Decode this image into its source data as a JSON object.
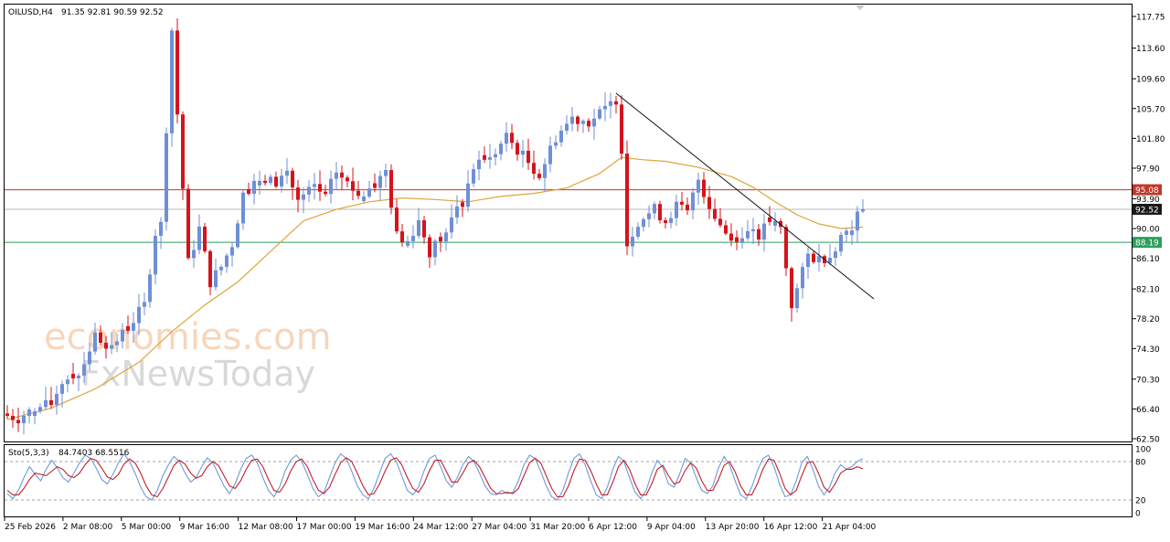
{
  "header": {
    "symbol": "OILUSD,H4",
    "ohlc": "91.35 92.81 90.59 92.52"
  },
  "watermark": {
    "line1": "economies.com",
    "line2": "FxNewsToday"
  },
  "colors": {
    "bull": "#6f8fd6",
    "bear": "#d4141c",
    "ma": "#e0a43a",
    "resistance": "#c0392b",
    "support": "#2e9e5b",
    "current": "#1a1a1a",
    "trendline": "#111111",
    "stoch_k": "#6f9ad8",
    "stoch_d": "#c2212a"
  },
  "chart_data": [
    {
      "type": "candlestick",
      "timeframe": "H4",
      "symbol": "OILUSD",
      "ylim": [
        62.5,
        117.75
      ],
      "y_ticks": [
        "117.75",
        "113.60",
        "109.60",
        "105.70",
        "101.80",
        "97.90",
        "93.90",
        "90.00",
        "86.10",
        "82.10",
        "78.20",
        "74.30",
        "70.30",
        "66.40",
        "62.50"
      ],
      "x_tick_labels": [
        "25 Feb 2026",
        "2 Mar 08:00",
        "5 Mar 00:00",
        "9 Mar 16:00",
        "12 Mar 08:00",
        "17 Mar 00:00",
        "19 Mar 16:00",
        "24 Mar 12:00",
        "27 Mar 04:00",
        "31 Mar 20:00",
        "6 Apr 12:00",
        "9 Apr 04:00",
        "13 Apr 20:00",
        "16 Apr 12:00",
        "21 Apr 04:00"
      ],
      "levels": [
        {
          "label": "95.08",
          "value": 95.08,
          "kind": "resistance"
        },
        {
          "label": "92.52",
          "value": 92.52,
          "kind": "current"
        },
        {
          "label": "88.19",
          "value": 88.19,
          "kind": "support"
        }
      ],
      "trendline": {
        "from": {
          "bar": 111,
          "price": 107.7
        },
        "to": {
          "bar": 157,
          "price": 80.8
        }
      },
      "close_path": [
        [
          0,
          65.5
        ],
        [
          2,
          65.2
        ],
        [
          5,
          66.5
        ],
        [
          8,
          67.0
        ],
        [
          10,
          70.0
        ],
        [
          13,
          71.0
        ],
        [
          16,
          76.0
        ],
        [
          19,
          74.5
        ],
        [
          22,
          77.0
        ],
        [
          25,
          80.0
        ],
        [
          27,
          89.5
        ],
        [
          28,
          90.5
        ],
        [
          30,
          116.0
        ],
        [
          31,
          105.0
        ],
        [
          33,
          85.5
        ],
        [
          35,
          90.0
        ],
        [
          37,
          83.0
        ],
        [
          39,
          85.0
        ],
        [
          41,
          88.0
        ],
        [
          43,
          94.5
        ],
        [
          46,
          96.5
        ],
        [
          49,
          96.0
        ],
        [
          51,
          97.5
        ],
        [
          53,
          93.5
        ],
        [
          56,
          95.5
        ],
        [
          58,
          94.0
        ],
        [
          60,
          97.5
        ],
        [
          63,
          95.0
        ],
        [
          66,
          94.5
        ],
        [
          69,
          97.5
        ],
        [
          71,
          89.0
        ],
        [
          73,
          88.5
        ],
        [
          75,
          91.0
        ],
        [
          77,
          87.0
        ],
        [
          80,
          89.5
        ],
        [
          83,
          93.5
        ],
        [
          85,
          98.0
        ],
        [
          88,
          99.0
        ],
        [
          91,
          102.0
        ],
        [
          94,
          99.5
        ],
        [
          97,
          97.0
        ],
        [
          100,
          102.0
        ],
        [
          103,
          104.5
        ],
        [
          106,
          104.0
        ],
        [
          109,
          105.5
        ],
        [
          111,
          107.0
        ],
        [
          112,
          100.5
        ],
        [
          113,
          88.0
        ],
        [
          115,
          91.0
        ],
        [
          118,
          92.5
        ],
        [
          120,
          91.0
        ],
        [
          122,
          93.0
        ],
        [
          124,
          92.0
        ],
        [
          126,
          96.5
        ],
        [
          128,
          93.0
        ],
        [
          130,
          90.5
        ],
        [
          132,
          88.5
        ],
        [
          134,
          89.5
        ],
        [
          137,
          89.0
        ],
        [
          139,
          91.0
        ],
        [
          141,
          90.0
        ],
        [
          143,
          80.0
        ],
        [
          144,
          82.0
        ],
        [
          146,
          86.5
        ],
        [
          148,
          86.0
        ],
        [
          150,
          86.5
        ],
        [
          152,
          89.0
        ],
        [
          154,
          90.5
        ],
        [
          156,
          92.52
        ]
      ],
      "ma_path": [
        [
          0,
          65.0
        ],
        [
          8,
          66.5
        ],
        [
          16,
          69.0
        ],
        [
          24,
          72.5
        ],
        [
          30,
          76.5
        ],
        [
          36,
          80.0
        ],
        [
          42,
          83.0
        ],
        [
          48,
          87.0
        ],
        [
          54,
          91.0
        ],
        [
          60,
          92.5
        ],
        [
          66,
          93.5
        ],
        [
          72,
          94.0
        ],
        [
          78,
          93.8
        ],
        [
          84,
          93.5
        ],
        [
          90,
          94.2
        ],
        [
          96,
          94.6
        ],
        [
          102,
          95.3
        ],
        [
          108,
          97.2
        ],
        [
          112,
          99.3
        ],
        [
          116,
          99.0
        ],
        [
          120,
          98.8
        ],
        [
          126,
          98.0
        ],
        [
          132,
          96.8
        ],
        [
          136,
          95.4
        ],
        [
          140,
          93.5
        ],
        [
          144,
          91.8
        ],
        [
          148,
          90.6
        ],
        [
          152,
          90.0
        ],
        [
          156,
          90.2
        ]
      ]
    },
    {
      "type": "line",
      "name": "Sto(5,3,3)",
      "values_text": "84.7403 68.5516",
      "ylim": [
        0,
        100
      ],
      "y_ticks": [
        "100",
        "80",
        "20",
        "0"
      ],
      "levels": [
        80,
        20
      ],
      "series": [
        {
          "label": "k",
          "values": [
            30,
            22,
            35,
            55,
            72,
            60,
            50,
            68,
            82,
            70,
            55,
            48,
            62,
            78,
            90,
            85,
            70,
            52,
            45,
            60,
            78,
            92,
            80,
            62,
            40,
            25,
            20,
            35,
            58,
            75,
            88,
            80,
            62,
            48,
            55,
            72,
            86,
            78,
            60,
            42,
            30,
            45,
            68,
            85,
            90,
            78,
            55,
            35,
            25,
            40,
            65,
            82,
            90,
            80,
            60,
            38,
            25,
            32,
            55,
            78,
            92,
            85,
            65,
            42,
            28,
            22,
            38,
            62,
            85,
            92,
            80,
            58,
            35,
            28,
            40,
            65,
            85,
            90,
            72,
            50,
            40,
            55,
            75,
            88,
            80,
            62,
            42,
            30,
            28,
            35,
            30,
            32,
            50,
            75,
            90,
            85,
            65,
            42,
            25,
            20,
            35,
            62,
            85,
            92,
            75,
            50,
            28,
            22,
            40,
            68,
            88,
            80,
            55,
            32,
            22,
            35,
            62,
            82,
            70,
            45,
            40,
            60,
            85,
            78,
            55,
            35,
            30,
            42,
            70,
            88,
            75,
            50,
            28,
            22,
            40,
            65,
            85,
            90,
            72,
            45,
            25,
            28,
            50,
            78,
            88,
            68,
            42,
            28,
            40,
            62,
            75,
            68,
            72,
            80,
            84.74
          ]
        },
        {
          "label": "d",
          "values": [
            35,
            28,
            28,
            38,
            52,
            62,
            60,
            58,
            65,
            72,
            68,
            58,
            55,
            62,
            75,
            85,
            82,
            70,
            56,
            52,
            60,
            76,
            84,
            78,
            62,
            42,
            28,
            25,
            38,
            56,
            74,
            82,
            76,
            62,
            54,
            58,
            72,
            80,
            74,
            58,
            42,
            38,
            50,
            68,
            82,
            84,
            72,
            52,
            35,
            32,
            45,
            65,
            80,
            84,
            72,
            52,
            35,
            30,
            40,
            60,
            78,
            86,
            80,
            62,
            42,
            28,
            30,
            45,
            65,
            82,
            86,
            75,
            55,
            38,
            32,
            45,
            66,
            82,
            82,
            65,
            48,
            48,
            62,
            78,
            82,
            72,
            55,
            38,
            30,
            30,
            32,
            30,
            38,
            58,
            78,
            85,
            78,
            58,
            38,
            25,
            25,
            42,
            66,
            84,
            82,
            66,
            45,
            28,
            28,
            48,
            72,
            82,
            68,
            45,
            28,
            28,
            45,
            68,
            74,
            58,
            45,
            48,
            66,
            78,
            70,
            50,
            35,
            35,
            52,
            74,
            80,
            64,
            42,
            28,
            28,
            45,
            68,
            84,
            82,
            62,
            38,
            28,
            35,
            58,
            78,
            80,
            62,
            40,
            32,
            45,
            62,
            68,
            68,
            72,
            68.55
          ]
        }
      ]
    }
  ]
}
